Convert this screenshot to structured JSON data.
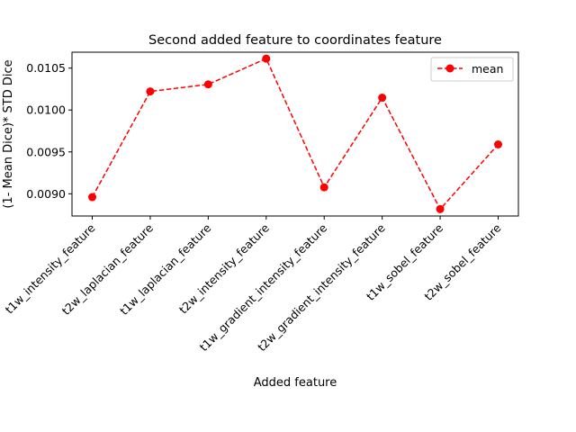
{
  "chart_data": {
    "type": "line",
    "title": "Second added feature to coordinates feature",
    "xlabel": "Added feature",
    "ylabel": "(1- Mean Dice)* STD Dice",
    "categories": [
      "t1w_intensity_feature",
      "t2w_laplacian_feature",
      "t1w_laplacian_feature",
      "t2w_intensity_feature",
      "t1w_gradient_intensity_feature",
      "t2w_gradient_intensity_feature",
      "t1w_sobel_feature",
      "t2w_sobel_feature"
    ],
    "series": [
      {
        "name": "mean",
        "color": "#ff0000",
        "line_style": "dashed",
        "marker": "circle",
        "values": [
          0.00896,
          0.010222,
          0.010306,
          0.010613,
          0.009077,
          0.010147,
          0.008817,
          0.009589
        ]
      }
    ],
    "ylim": [
      0.008735,
      0.01069
    ],
    "yticks": [
      "0.0090",
      "0.0095",
      "0.0100",
      "0.0105"
    ],
    "ytick_values": [
      0.009,
      0.0095,
      0.01,
      0.0105
    ],
    "legend_position": "top-right",
    "grid": false
  }
}
